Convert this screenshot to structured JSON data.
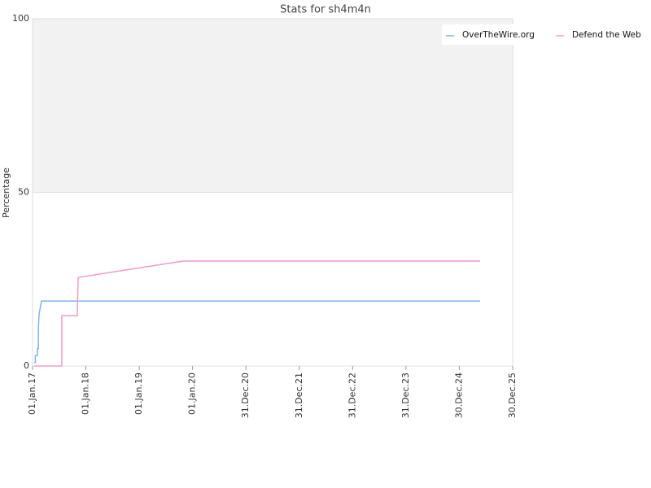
{
  "chart_data": {
    "type": "line",
    "title": "Stats for sh4m4n",
    "y_label": "Percentage",
    "ylim": [
      0,
      100
    ],
    "yticks": [
      0,
      50,
      100
    ],
    "grid": true,
    "legend": "top-right",
    "xlim": [
      "2017-01-01",
      "2025-12-30"
    ],
    "xticks": [
      {
        "value": "2017-01-01",
        "label": "01.Jan.17"
      },
      {
        "value": "2018-01-01",
        "label": "01.Jan.18"
      },
      {
        "value": "2019-01-01",
        "label": "01.Jan.19"
      },
      {
        "value": "2020-01-01",
        "label": "01.Jan.20"
      },
      {
        "value": "2020-12-31",
        "label": "31.Dec.20"
      },
      {
        "value": "2021-12-31",
        "label": "31.Dec.21"
      },
      {
        "value": "2022-12-31",
        "label": "31.Dec.22"
      },
      {
        "value": "2023-12-31",
        "label": "31.Dec.23"
      },
      {
        "value": "2024-12-30",
        "label": "30.Dec.24"
      },
      {
        "value": "2025-12-30",
        "label": "30.Dec.25"
      }
    ],
    "series": [
      {
        "name": "OverTheWire.org",
        "color": "#7cb5ec",
        "x": [
          "2017-01-12",
          "2017-01-20",
          "2017-01-20",
          "2017-02-03",
          "2017-02-03",
          "2017-02-10",
          "2017-02-10",
          "2017-02-15",
          "2017-03-03",
          "2025-05-21"
        ],
        "values": [
          1,
          1,
          3,
          3,
          5,
          5,
          11,
          15,
          18.7,
          18.7
        ]
      },
      {
        "name": "Defend the Web",
        "color": "#f29ac8",
        "x": [
          "2017-01-12",
          "2017-07-20",
          "2017-07-20",
          "2017-11-03",
          "2017-11-09",
          "2019-10-28",
          "2025-05-21"
        ],
        "values": [
          0,
          0,
          14.5,
          14.5,
          25.5,
          30.2,
          30.2
        ]
      }
    ]
  }
}
